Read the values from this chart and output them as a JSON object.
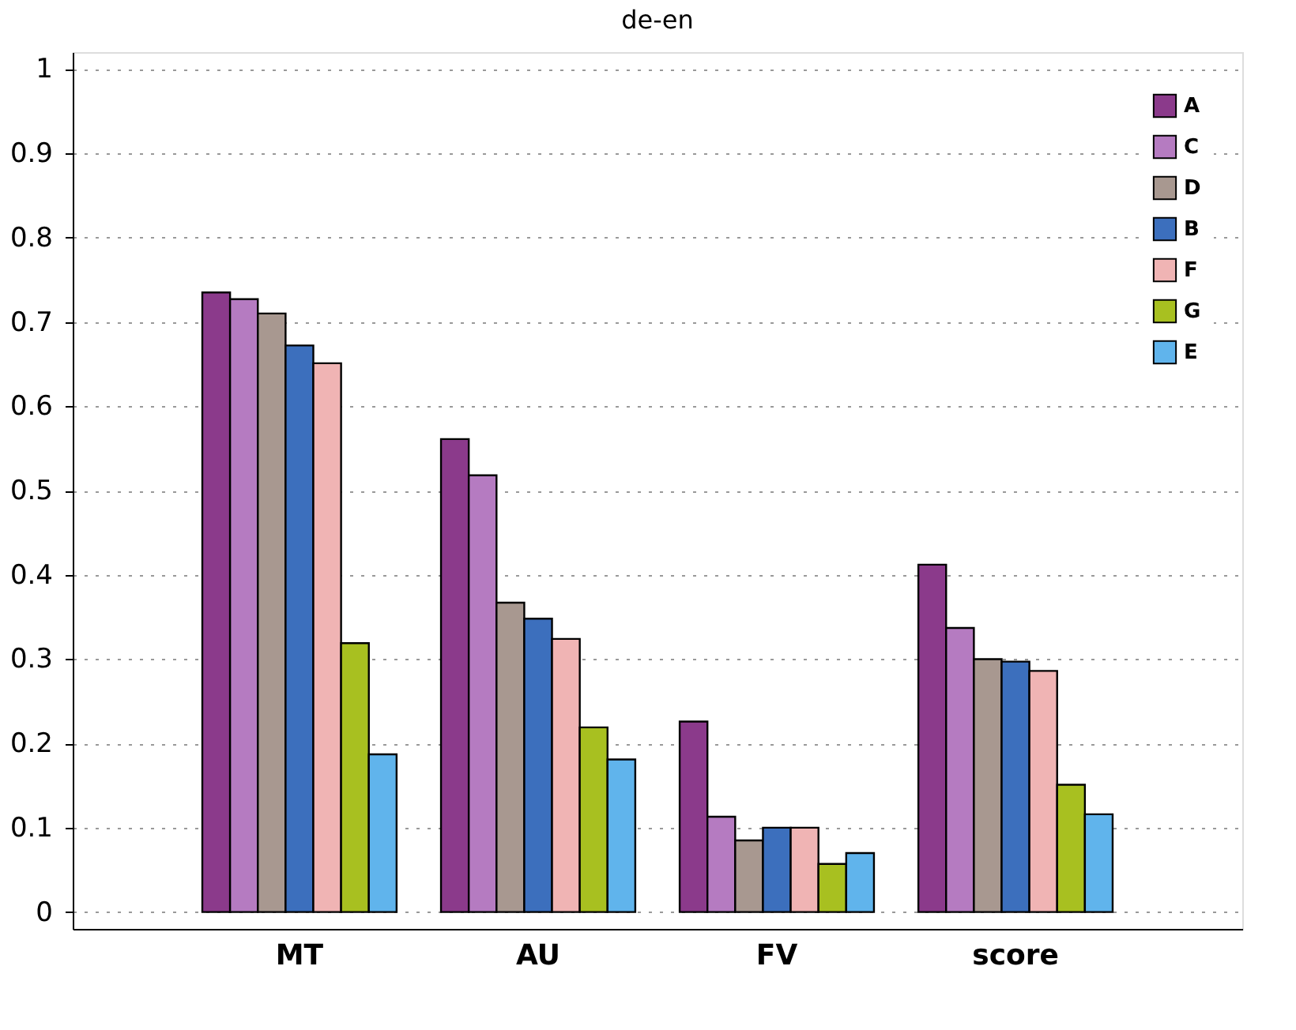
{
  "chart_data": {
    "type": "bar",
    "title": "de-en",
    "categories": [
      "MT",
      "AU",
      "FV",
      "score"
    ],
    "series": [
      {
        "name": "A",
        "color": "#8b3a8b",
        "values": [
          0.735,
          0.561,
          0.226,
          0.412
        ]
      },
      {
        "name": "C",
        "color": "#b57bc1",
        "values": [
          0.727,
          0.518,
          0.113,
          0.337
        ]
      },
      {
        "name": "D",
        "color": "#a89890",
        "values": [
          0.71,
          0.367,
          0.085,
          0.3
        ]
      },
      {
        "name": "B",
        "color": "#3c6fbd",
        "values": [
          0.672,
          0.348,
          0.1,
          0.297
        ]
      },
      {
        "name": "F",
        "color": "#f0b4b4",
        "values": [
          0.651,
          0.324,
          0.1,
          0.286
        ]
      },
      {
        "name": "G",
        "color": "#a8c020",
        "values": [
          0.319,
          0.219,
          0.057,
          0.151
        ]
      },
      {
        "name": "E",
        "color": "#60b4ec",
        "values": [
          0.187,
          0.181,
          0.07,
          0.116
        ]
      }
    ],
    "ylim": [
      -0.02,
      1.02
    ],
    "yticks": [
      0,
      0.1,
      0.2,
      0.3,
      0.4,
      0.5,
      0.6,
      0.7,
      0.8,
      0.9,
      1
    ],
    "grid": "y",
    "legend": "top right"
  }
}
